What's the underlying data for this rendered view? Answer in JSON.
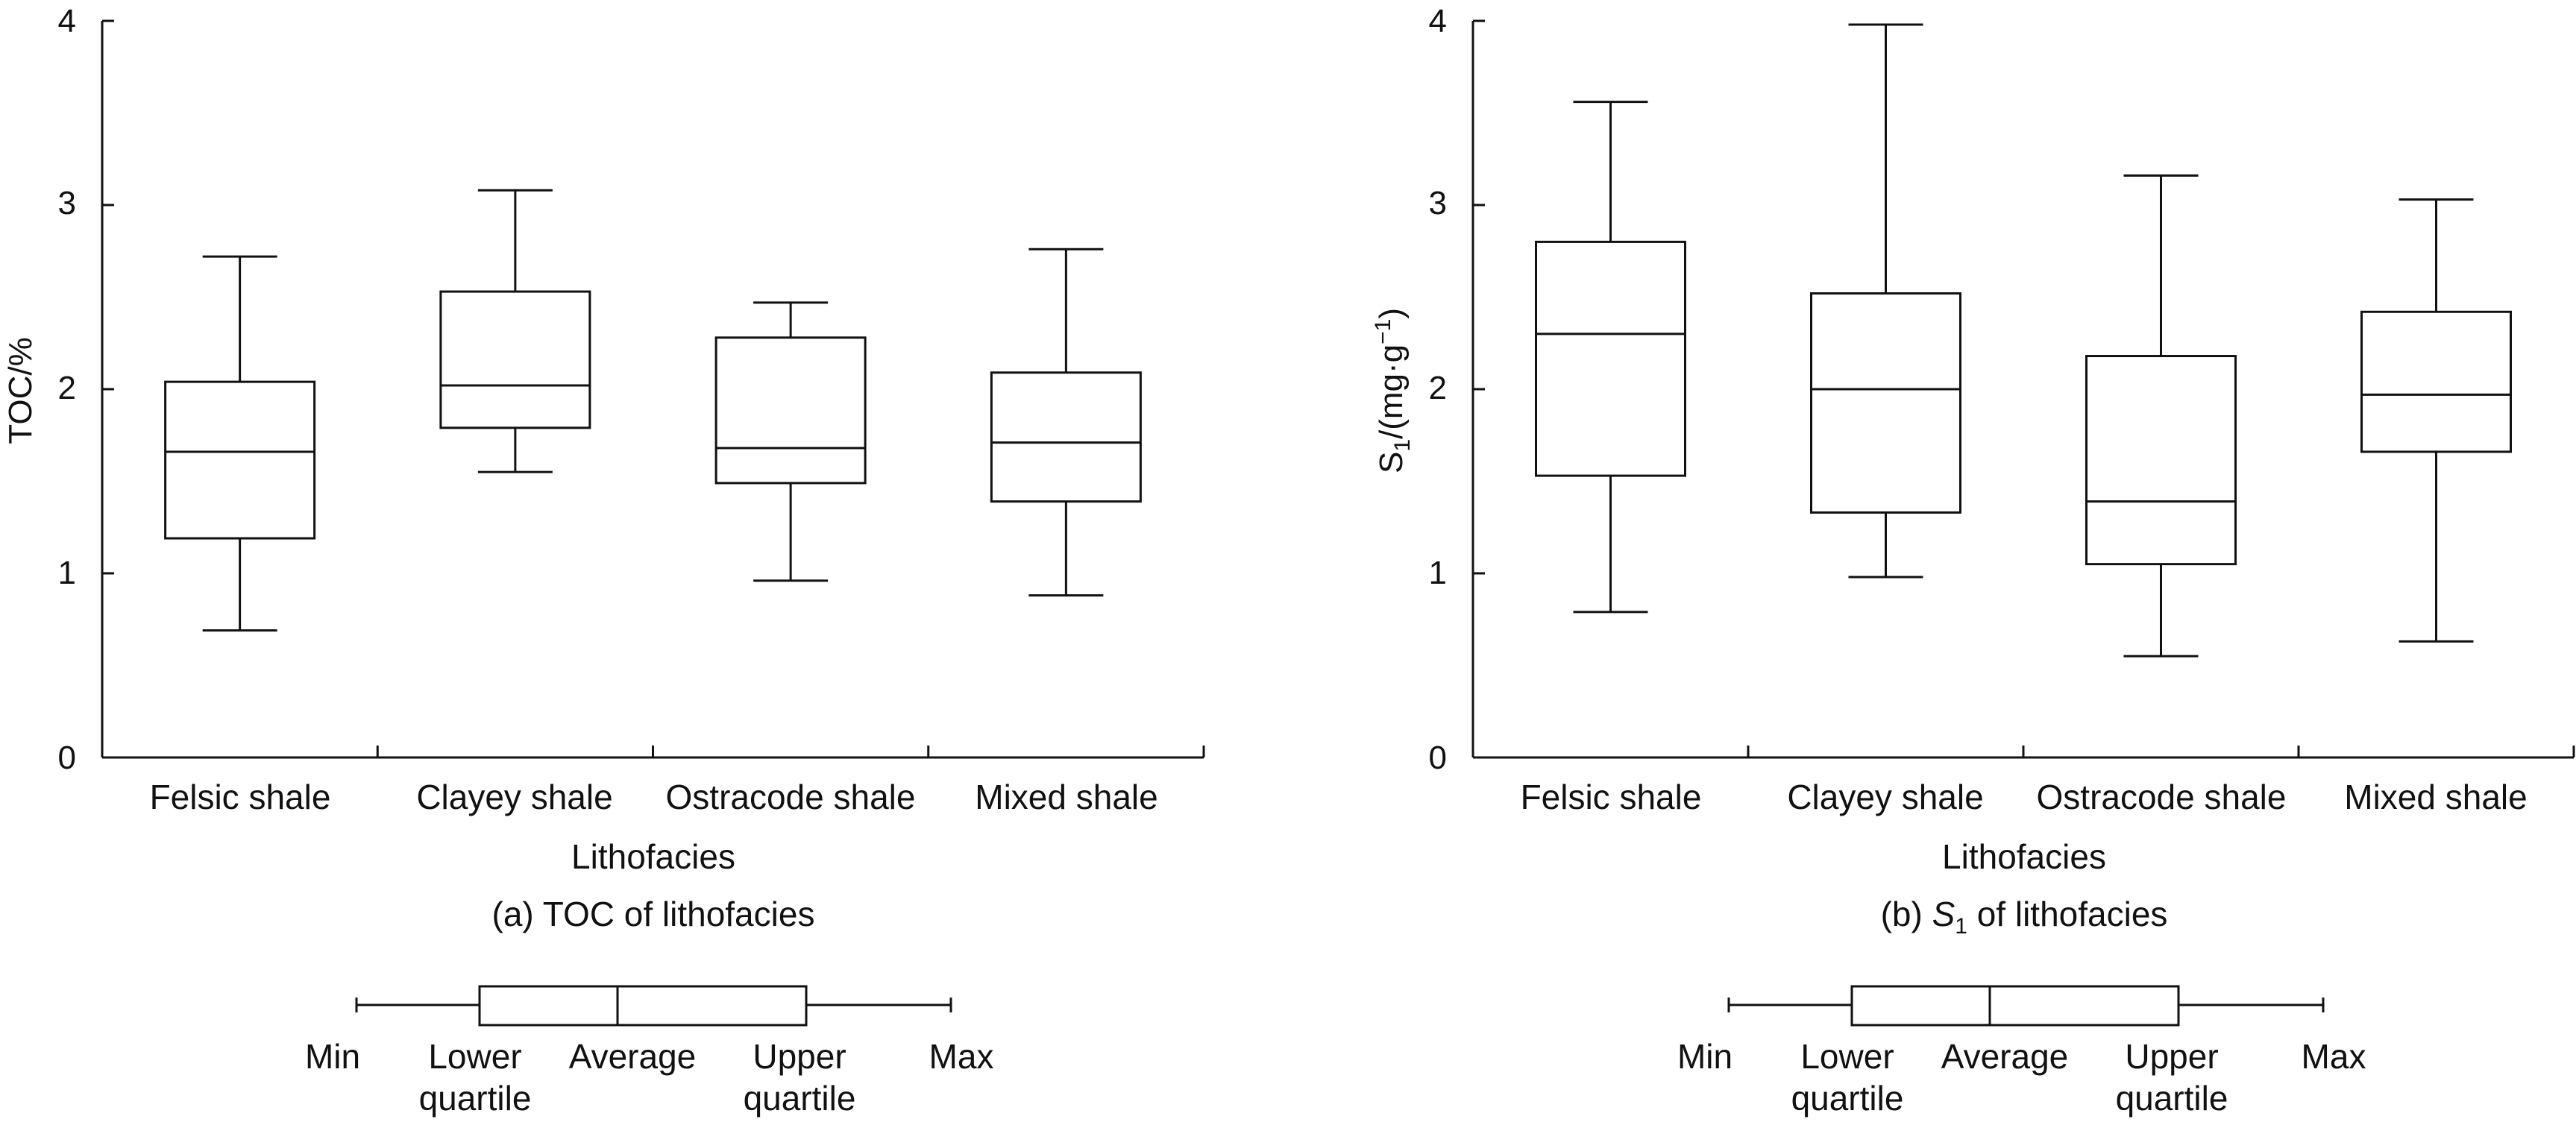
{
  "chart_data": [
    {
      "id": "a",
      "type": "box",
      "caption_prefix": "(a) TOC of lithofacies",
      "xlabel": "Lithofacies",
      "ylabel": "TOC/%",
      "ylim": [
        0,
        4
      ],
      "yticks": [
        "0",
        "1",
        "2",
        "3",
        "4"
      ],
      "categories": [
        "Felsic shale",
        "Clayey shale",
        "Ostracode shale",
        "Mixed shale"
      ],
      "boxes": [
        {
          "min": 0.69,
          "q1": 1.19,
          "avg": 1.66,
          "q3": 2.04,
          "max": 2.72
        },
        {
          "min": 1.55,
          "q1": 1.79,
          "avg": 2.02,
          "q3": 2.53,
          "max": 3.08
        },
        {
          "min": 0.96,
          "q1": 1.49,
          "avg": 1.68,
          "q3": 2.28,
          "max": 2.47
        },
        {
          "min": 0.88,
          "q1": 1.39,
          "avg": 1.71,
          "q3": 2.09,
          "max": 2.76
        }
      ]
    },
    {
      "id": "b",
      "type": "box",
      "caption_prefix": "(b) ",
      "caption_symbol": "S",
      "caption_sub": "1",
      "caption_suffix": " of lithofacies",
      "xlabel": "Lithofacies",
      "ylabel_main": "S",
      "ylabel_sub": "1",
      "ylabel_unit": "/(mg·g",
      "ylabel_sup": "−1",
      "ylabel_close": ")",
      "ylim": [
        0,
        4
      ],
      "yticks": [
        "0",
        "1",
        "2",
        "3",
        "4"
      ],
      "categories": [
        "Felsic shale",
        "Clayey shale",
        "Ostracode shale",
        "Mixed shale"
      ],
      "boxes": [
        {
          "min": 0.79,
          "q1": 1.53,
          "avg": 2.3,
          "q3": 2.8,
          "max": 3.56
        },
        {
          "min": 0.98,
          "q1": 1.33,
          "avg": 2.0,
          "q3": 2.52,
          "max": 3.98
        },
        {
          "min": 0.55,
          "q1": 1.05,
          "avg": 1.39,
          "q3": 2.18,
          "max": 3.16
        },
        {
          "min": 0.63,
          "q1": 1.66,
          "avg": 1.97,
          "q3": 2.42,
          "max": 3.03
        }
      ]
    }
  ],
  "legend": {
    "min": "Min",
    "lower_1": "Lower",
    "lower_2": "quartile",
    "average": "Average",
    "upper_1": "Upper",
    "upper_2": "quartile",
    "max": "Max"
  }
}
